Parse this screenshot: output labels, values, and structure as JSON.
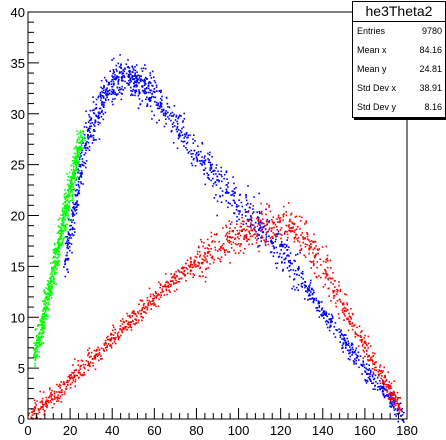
{
  "chart_data": {
    "type": "scatter",
    "xlim": [
      0,
      180
    ],
    "ylim": [
      0,
      40
    ],
    "x_ticks": [
      "0",
      "20",
      "40",
      "60",
      "80",
      "100",
      "120",
      "140",
      "160",
      "180"
    ],
    "y_ticks": [
      "0",
      "5",
      "10",
      "15",
      "20",
      "25",
      "30",
      "35",
      "40"
    ],
    "grid": false,
    "legend_position": "top-right",
    "series": [
      {
        "color": "#0000ff",
        "description_points": [
          [
            17,
            15
          ],
          [
            21,
            20
          ],
          [
            25,
            25
          ],
          [
            30,
            29
          ],
          [
            35,
            31.5
          ],
          [
            40,
            33
          ],
          [
            45,
            33.8
          ],
          [
            50,
            33.5
          ],
          [
            55,
            32.8
          ],
          [
            60,
            31.8
          ],
          [
            70,
            29
          ],
          [
            80,
            26
          ],
          [
            90,
            23.5
          ],
          [
            100,
            21
          ],
          [
            110,
            19
          ],
          [
            120,
            16.5
          ],
          [
            130,
            13.5
          ],
          [
            140,
            10.5
          ],
          [
            150,
            7.5
          ],
          [
            160,
            5
          ],
          [
            170,
            2.5
          ],
          [
            178,
            0.5
          ]
        ]
      },
      {
        "color": "#00ff00",
        "description_points": [
          [
            3,
            6
          ],
          [
            5,
            8
          ],
          [
            7,
            10
          ],
          [
            9,
            12
          ],
          [
            11,
            14
          ],
          [
            13,
            16
          ],
          [
            15,
            18
          ],
          [
            17,
            20
          ],
          [
            19,
            22
          ],
          [
            21,
            24
          ],
          [
            23,
            26
          ],
          [
            25,
            28
          ]
        ]
      },
      {
        "color": "#ff0000",
        "description_points": [
          [
            1,
            0.5
          ],
          [
            10,
            2
          ],
          [
            20,
            4
          ],
          [
            30,
            6
          ],
          [
            40,
            8
          ],
          [
            50,
            10
          ],
          [
            60,
            12
          ],
          [
            70,
            14
          ],
          [
            80,
            15.5
          ],
          [
            90,
            17
          ],
          [
            100,
            18
          ],
          [
            110,
            19
          ],
          [
            120,
            19.5
          ],
          [
            130,
            18
          ],
          [
            140,
            15
          ],
          [
            150,
            11
          ],
          [
            160,
            7
          ],
          [
            170,
            3.5
          ],
          [
            177,
            1
          ]
        ]
      }
    ]
  },
  "stats_box": {
    "title": "he3Theta2",
    "rows": [
      {
        "label": "Entries",
        "value": "9780"
      },
      {
        "label": "Mean x",
        "value": "84.16"
      },
      {
        "label": "Mean y",
        "value": "24.81"
      },
      {
        "label": "Std Dev x",
        "value": "38.91"
      },
      {
        "label": "Std Dev y",
        "value": "8.16"
      }
    ]
  }
}
